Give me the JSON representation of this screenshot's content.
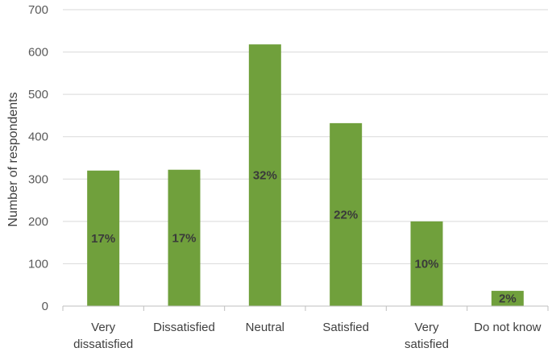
{
  "chart_data": {
    "type": "bar",
    "title": "",
    "xlabel": "",
    "ylabel": "Number of respondents",
    "ylim": [
      0,
      700
    ],
    "yticks": [
      0,
      100,
      200,
      300,
      400,
      500,
      600,
      700
    ],
    "grid": true,
    "categories": [
      [
        "Very",
        "dissatisfied"
      ],
      [
        "Dissatisfied"
      ],
      [
        "Neutral"
      ],
      [
        "Satisfied"
      ],
      [
        "Very",
        "satisfied"
      ],
      [
        "Do not know"
      ]
    ],
    "values": [
      320,
      322,
      618,
      432,
      200,
      36
    ],
    "data_labels": [
      "17%",
      "17%",
      "32%",
      "22%",
      "10%",
      "2%"
    ],
    "colors": {
      "bar": "#70a03c",
      "grid": "#d9d9d9",
      "axis": "#bfbfbf"
    }
  }
}
